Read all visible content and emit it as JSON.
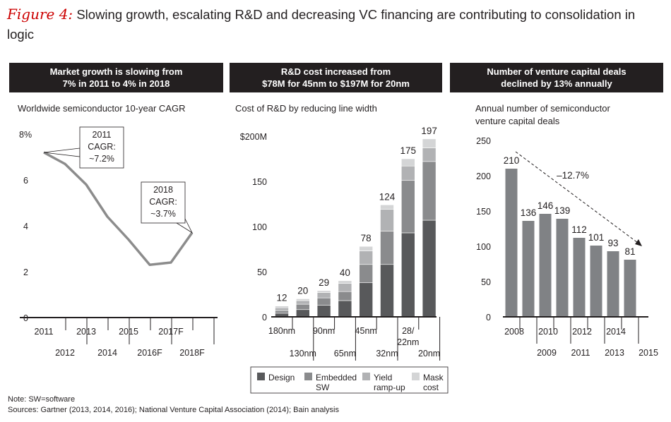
{
  "figure": {
    "label": "Figure 4:",
    "title": "Slowing growth, escalating R&D and decreasing VC financing are contributing to consolidation in logic"
  },
  "panels": {
    "p1": {
      "header_line1": "Market growth is slowing from",
      "header_line2": "7% in 2011 to 4% in 2018",
      "subtitle": "Worldwide semiconductor 10-year CAGR"
    },
    "p2": {
      "header_line1": "R&D cost increased from",
      "header_line2": "$78M for 45nm to $197M for 20nm",
      "subtitle": "Cost of R&D by reducing line width"
    },
    "p3": {
      "header_line1": "Number of venture capital deals",
      "header_line2": "declined by 13% annually",
      "subtitle_line1": "Annual number of semiconductor",
      "subtitle_line2": "venture capital deals"
    }
  },
  "notes": {
    "note": "Note: SW=software",
    "sources": "Sources: Gartner (2013, 2014, 2016); National Venture Capital Association (2014); Bain analysis"
  },
  "colors": {
    "line": "#8c8c8c",
    "design": "#58595b",
    "embedded_sw": "#8a8b8d",
    "yield_rampup": "#b1b2b4",
    "mask_cost": "#d4d5d6",
    "vc_bar": "#808285",
    "arrow": "#231f20"
  },
  "chart_data": [
    {
      "type": "line",
      "title": "Worldwide semiconductor 10-year CAGR",
      "x": [
        "2011",
        "2012",
        "2013",
        "2014",
        "2015",
        "2016F",
        "2017F",
        "2018F"
      ],
      "values": [
        7.2,
        6.7,
        5.8,
        4.4,
        3.4,
        2.3,
        2.4,
        3.7
      ],
      "ylim": [
        0,
        8
      ],
      "y_ticks": [
        "0",
        "2",
        "4",
        "6",
        "8%"
      ],
      "callouts": [
        {
          "index": 0,
          "lines": [
            "2011",
            "CAGR:",
            "~7.2%"
          ]
        },
        {
          "index": 7,
          "lines": [
            "2018",
            "CAGR:",
            "~3.7%"
          ]
        }
      ]
    },
    {
      "type": "bar",
      "stacked": true,
      "title": "Cost of R&D by reducing line width",
      "categories": [
        "180nm",
        "130nm",
        "90nm",
        "65nm",
        "45nm",
        "32nm",
        "28/22nm",
        "20nm"
      ],
      "category_labels": [
        [
          "180nm"
        ],
        [
          "130nm"
        ],
        [
          "90nm"
        ],
        [
          "65nm"
        ],
        [
          "45nm"
        ],
        [
          "32nm"
        ],
        [
          "28/",
          "22nm"
        ],
        [
          "20nm"
        ]
      ],
      "series": [
        {
          "name": "Design",
          "legend": [
            "Design"
          ],
          "values": [
            4,
            8,
            13,
            18,
            38,
            58,
            93,
            107
          ]
        },
        {
          "name": "Embedded SW",
          "legend": [
            "Embedded",
            "SW"
          ],
          "values": [
            3,
            6,
            8,
            10,
            20,
            37,
            58,
            65
          ]
        },
        {
          "name": "Yield ramp-up",
          "legend": [
            "Yield",
            "ramp-up"
          ],
          "values": [
            3,
            4,
            6,
            9,
            15,
            24,
            16,
            15
          ]
        },
        {
          "name": "Mask cost",
          "legend": [
            "Mask",
            "cost"
          ],
          "values": [
            2,
            2,
            2,
            3,
            5,
            5,
            8,
            10
          ]
        }
      ],
      "totals": [
        "12",
        "20",
        "29",
        "40",
        "78",
        "124",
        "175",
        "197"
      ],
      "ylim": [
        0,
        200
      ],
      "y_ticks": [
        "0",
        "50",
        "100",
        "150",
        "$200M"
      ]
    },
    {
      "type": "bar",
      "title": "Annual number of semiconductor venture capital deals",
      "categories": [
        "2008",
        "2009",
        "2010",
        "2011",
        "2012",
        "2013",
        "2014",
        "2015"
      ],
      "values": [
        210,
        136,
        146,
        139,
        112,
        101,
        93,
        81
      ],
      "value_labels": [
        "210",
        "136",
        "146",
        "139",
        "112",
        "101",
        "93",
        "81"
      ],
      "ylim": [
        0,
        250
      ],
      "y_ticks": [
        "0",
        "50",
        "100",
        "150",
        "200",
        "250"
      ],
      "trend_label": "–12.7%"
    }
  ]
}
